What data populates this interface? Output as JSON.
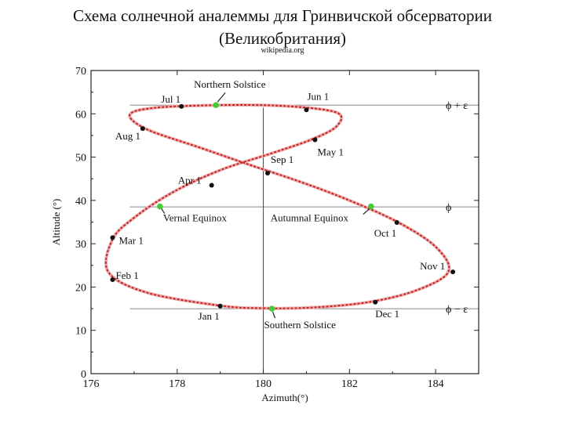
{
  "header": {
    "title_line1": "Схема солнечной аналеммы для Гринвичской обсерватории",
    "title_line2": "(Великобритания)",
    "source": "wikipedia.org"
  },
  "chart_data": {
    "type": "scatter",
    "xlabel": "Azimuth(°)",
    "ylabel": "Altitude (°)",
    "xlim": [
      176,
      185
    ],
    "ylim": [
      0,
      70
    ],
    "xticks": [
      176,
      178,
      180,
      182,
      184
    ],
    "yticks": [
      0,
      10,
      20,
      30,
      40,
      50,
      60,
      70
    ],
    "grid": false,
    "colors": {
      "curve": "#cc2222",
      "month_marker": "#111111",
      "solstice_equinox_marker": "#44cc33",
      "reference_line": "#888888"
    },
    "analemma_path": [
      {
        "x": 180.0,
        "y": 15.1
      },
      {
        "x": 181.2,
        "y": 15.3
      },
      {
        "x": 182.5,
        "y": 16.6
      },
      {
        "x": 183.6,
        "y": 19.4
      },
      {
        "x": 184.3,
        "y": 23.6
      },
      {
        "x": 184.0,
        "y": 29.3
      },
      {
        "x": 183.1,
        "y": 35.1
      },
      {
        "x": 181.9,
        "y": 40.4
      },
      {
        "x": 180.8,
        "y": 44.5
      },
      {
        "x": 179.6,
        "y": 48.5
      },
      {
        "x": 178.5,
        "y": 52.3
      },
      {
        "x": 177.3,
        "y": 56.4
      },
      {
        "x": 176.9,
        "y": 59.8
      },
      {
        "x": 177.5,
        "y": 61.4
      },
      {
        "x": 179.0,
        "y": 62.0
      },
      {
        "x": 180.5,
        "y": 61.8
      },
      {
        "x": 181.7,
        "y": 60.3
      },
      {
        "x": 181.7,
        "y": 57.1
      },
      {
        "x": 181.1,
        "y": 54.0
      },
      {
        "x": 180.2,
        "y": 50.9
      },
      {
        "x": 179.0,
        "y": 47.0
      },
      {
        "x": 177.9,
        "y": 41.9
      },
      {
        "x": 177.0,
        "y": 36.0
      },
      {
        "x": 176.5,
        "y": 31.0
      },
      {
        "x": 176.4,
        "y": 23.5
      },
      {
        "x": 177.3,
        "y": 18.7
      },
      {
        "x": 179.0,
        "y": 15.7
      },
      {
        "x": 180.0,
        "y": 15.1
      }
    ],
    "month_points": [
      {
        "label": "Jan 1",
        "x": 179.0,
        "y": 15.6
      },
      {
        "label": "Feb 1",
        "x": 176.5,
        "y": 21.7
      },
      {
        "label": "Mar 1",
        "x": 176.5,
        "y": 31.4
      },
      {
        "label": "Apr 1",
        "x": 178.8,
        "y": 43.5
      },
      {
        "label": "May 1",
        "x": 181.2,
        "y": 54.0
      },
      {
        "label": "Jun 1",
        "x": 181.0,
        "y": 60.9
      },
      {
        "label": "Jul 1",
        "x": 178.1,
        "y": 61.7
      },
      {
        "label": "Aug 1",
        "x": 177.2,
        "y": 56.6
      },
      {
        "label": "Sep 1",
        "x": 180.1,
        "y": 46.3
      },
      {
        "label": "Oct 1",
        "x": 183.1,
        "y": 34.9
      },
      {
        "label": "Nov 1",
        "x": 184.4,
        "y": 23.5
      },
      {
        "label": "Dec 1",
        "x": 182.6,
        "y": 16.5
      }
    ],
    "special_points": [
      {
        "label": "Northern Solstice",
        "x": 178.9,
        "y": 62.0
      },
      {
        "label": "Vernal Equinox",
        "x": 177.6,
        "y": 38.6
      },
      {
        "label": "Autumnal Equinox",
        "x": 182.5,
        "y": 38.6
      },
      {
        "label": "Southern Solstice",
        "x": 180.2,
        "y": 15.0
      }
    ],
    "reference_lines": [
      {
        "label": "ϕ + ε",
        "y": 62.0
      },
      {
        "label": "ϕ",
        "y": 38.5
      },
      {
        "label": "ϕ − ε",
        "y": 15.0
      }
    ],
    "vertical_line_x": 180.0
  }
}
